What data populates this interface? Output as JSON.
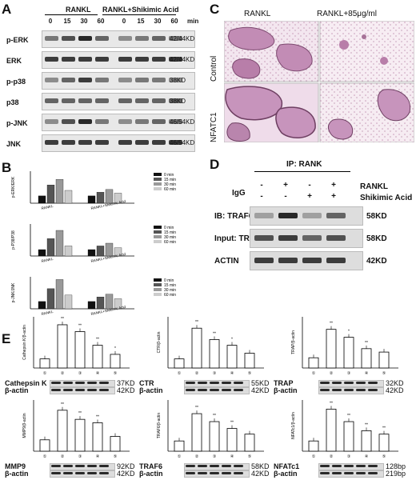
{
  "panels": {
    "A": "A",
    "B": "B",
    "C": "C",
    "D": "D",
    "E": "E"
  },
  "panelA": {
    "group1": "RANKL",
    "group2": "RANKL+Shikimic Acid",
    "times": [
      "0",
      "15",
      "30",
      "60",
      "0",
      "15",
      "30",
      "60"
    ],
    "time_unit": "min",
    "rows": [
      {
        "label": "p-ERK",
        "size": "42/44KD"
      },
      {
        "label": "ERK",
        "size": "42/44KD"
      },
      {
        "label": "p-p38",
        "size": "38KD"
      },
      {
        "label": "p38",
        "size": "38KD"
      },
      {
        "label": "p-JNK",
        "size": "46/54KD"
      },
      {
        "label": "JNK",
        "size": "46/54KD"
      }
    ],
    "row_intensity": [
      [
        0.5,
        0.7,
        0.9,
        0.6,
        0.4,
        0.5,
        0.6,
        0.5
      ],
      [
        0.8,
        0.8,
        0.8,
        0.8,
        0.8,
        0.8,
        0.8,
        0.8
      ],
      [
        0.4,
        0.6,
        0.8,
        0.5,
        0.4,
        0.5,
        0.5,
        0.4
      ],
      [
        0.6,
        0.6,
        0.6,
        0.6,
        0.6,
        0.6,
        0.6,
        0.6
      ],
      [
        0.4,
        0.7,
        0.9,
        0.5,
        0.4,
        0.5,
        0.6,
        0.5
      ],
      [
        0.8,
        0.8,
        0.8,
        0.8,
        0.8,
        0.8,
        0.8,
        0.8
      ]
    ]
  },
  "panelC": {
    "col1": "RANKL",
    "col2": "RANKL+85μg/ml",
    "row1": "Control",
    "row2": "NFATC1"
  },
  "panelD": {
    "title": "IP: RANK",
    "igg": "IgG",
    "rankl_label": "RANKL",
    "sa_label": "Shikimic Acid",
    "rankl_signs": [
      "-",
      "+",
      "-",
      "+"
    ],
    "sa_signs": [
      "-",
      "-",
      "+",
      "+"
    ],
    "rows": [
      {
        "label": "IB: TRAF6",
        "size": "58KD"
      },
      {
        "label": "Input: TRAF6",
        "size": "58KD"
      },
      {
        "label": "ACTIN",
        "size": "42KD"
      }
    ],
    "row_intensity": [
      [
        0.3,
        0.9,
        0.3,
        0.6
      ],
      [
        0.7,
        0.8,
        0.6,
        0.7
      ],
      [
        0.8,
        0.8,
        0.8,
        0.8
      ]
    ]
  },
  "panelE_blots": [
    {
      "target": "Cathepsin K",
      "target_size": "37KD",
      "actin": "β-actin",
      "actin_size": "42KD"
    },
    {
      "target": "CTR",
      "target_size": "55KD",
      "actin": "β-actin",
      "actin_size": "42KD"
    },
    {
      "target": "TRAP",
      "target_size": "32KD",
      "actin": "β-actin",
      "actin_size": "42KD"
    },
    {
      "target": "MMP9",
      "target_size": "92KD",
      "actin": "β-actin",
      "actin_size": "42KD"
    },
    {
      "target": "TRAF6",
      "target_size": "58KD",
      "actin": "β-actin",
      "actin_size": "42KD"
    },
    {
      "target": "NFATc1",
      "target_size": "128bp",
      "actin": "β-actin",
      "actin_size": "219bp"
    }
  ],
  "colors": {
    "bar_dark": "#111111",
    "bar_mid": "#555555",
    "bar_light": "#999999",
    "bar_lighter": "#cccccc",
    "micro_bg": "#f3e6ef",
    "micro_cell": "#b57aa6"
  },
  "chart_data": [
    {
      "type": "bar",
      "panel": "B",
      "ylabel": "p-ERK/ERK",
      "categories": [
        "RANKL",
        "RANKL+Shikimic Acid"
      ],
      "series": [
        {
          "name": "0 min",
          "values": [
            0.8,
            0.8
          ]
        },
        {
          "name": "15 min",
          "values": [
            2.0,
            1.2
          ]
        },
        {
          "name": "30 min",
          "values": [
            2.6,
            1.5
          ]
        },
        {
          "name": "60 min",
          "values": [
            1.4,
            1.1
          ]
        }
      ],
      "xlabels": [
        "RANKL",
        "RANKL+Shikimic Acid"
      ],
      "ylim": [
        0,
        3.5
      ]
    },
    {
      "type": "bar",
      "panel": "B",
      "ylabel": "p-P38/P38",
      "categories": [
        "RANKL",
        "RANKL+Shikimic Acid"
      ],
      "series": [
        {
          "name": "0 min",
          "values": [
            0.7,
            0.7
          ]
        },
        {
          "name": "15 min",
          "values": [
            1.9,
            1.1
          ]
        },
        {
          "name": "30 min",
          "values": [
            2.8,
            1.4
          ]
        },
        {
          "name": "60 min",
          "values": [
            1.1,
            0.9
          ]
        }
      ],
      "xlabels": [
        "RANKL",
        "RANKL+Shikimic Acid"
      ],
      "ylim": [
        0,
        3.5
      ]
    },
    {
      "type": "bar",
      "panel": "B",
      "ylabel": "p-JNK/JNK",
      "categories": [
        "RANKL",
        "RANKL+Shikimic Acid"
      ],
      "series": [
        {
          "name": "0 min",
          "values": [
            0.8,
            0.8
          ]
        },
        {
          "name": "15 min",
          "values": [
            2.2,
            1.3
          ]
        },
        {
          "name": "30 min",
          "values": [
            3.2,
            1.6
          ]
        },
        {
          "name": "60 min",
          "values": [
            1.5,
            1.1
          ]
        }
      ],
      "xlabels": [
        "RANKL",
        "RANKL+Shikimic Acid"
      ],
      "ylim": [
        0,
        3.5
      ]
    },
    {
      "type": "bar",
      "panel": "E",
      "ylabel": "Cathepsin K/β-actin",
      "categories": [
        "①",
        "②",
        "③",
        "④",
        "⑤"
      ],
      "values": [
        0.8,
        3.8,
        3.2,
        2.0,
        1.2
      ],
      "sig": [
        "",
        "**",
        "**",
        "**",
        "*"
      ],
      "ylim": [
        0,
        4.5
      ]
    },
    {
      "type": "bar",
      "panel": "E",
      "ylabel": "CTR/β-actin",
      "categories": [
        "①",
        "②",
        "③",
        "④",
        "⑤"
      ],
      "values": [
        0.8,
        3.5,
        2.5,
        2.0,
        1.3
      ],
      "sig": [
        "",
        "**",
        "**",
        "*",
        ""
      ],
      "ylim": [
        0,
        4.5
      ]
    },
    {
      "type": "bar",
      "panel": "E",
      "ylabel": "TRAP/β-actin",
      "categories": [
        "①",
        "②",
        "③",
        "④",
        "⑤"
      ],
      "values": [
        0.9,
        3.4,
        2.7,
        1.7,
        1.4
      ],
      "sig": [
        "",
        "**",
        "*",
        "**",
        ""
      ],
      "ylim": [
        0,
        4.5
      ]
    },
    {
      "type": "bar",
      "panel": "E",
      "ylabel": "MMP9/β-actin",
      "categories": [
        "①",
        "②",
        "③",
        "④",
        "⑤"
      ],
      "values": [
        1.0,
        3.6,
        2.8,
        2.5,
        1.3
      ],
      "sig": [
        "",
        "**",
        "**",
        "**",
        ""
      ],
      "ylim": [
        0,
        4.5
      ]
    },
    {
      "type": "bar",
      "panel": "E",
      "ylabel": "TRAF6/β-actin",
      "categories": [
        "①",
        "②",
        "③",
        "④",
        "⑤"
      ],
      "values": [
        0.9,
        3.3,
        2.6,
        2.0,
        1.5
      ],
      "sig": [
        "",
        "**",
        "**",
        "**",
        ""
      ],
      "ylim": [
        0,
        4.5
      ]
    },
    {
      "type": "bar",
      "panel": "E",
      "ylabel": "NFATc1/β-actin",
      "categories": [
        "①",
        "②",
        "③",
        "④",
        "⑤"
      ],
      "values": [
        0.9,
        3.7,
        2.6,
        1.8,
        1.5
      ],
      "sig": [
        "",
        "**",
        "**",
        "**",
        "**"
      ],
      "ylim": [
        0,
        4.5
      ]
    }
  ]
}
